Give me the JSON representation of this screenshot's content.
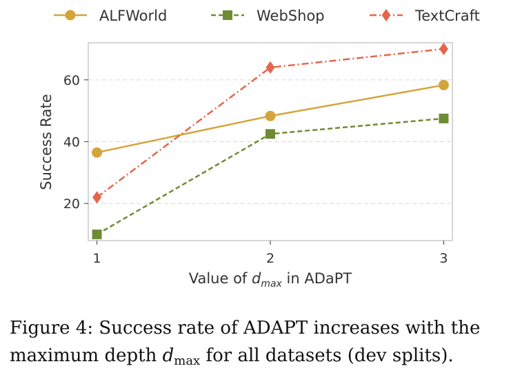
{
  "chart_data": {
    "type": "line",
    "x": [
      1,
      2,
      3
    ],
    "x_tick_labels": [
      "1",
      "2",
      "3"
    ],
    "y_ticks": [
      20,
      40,
      60
    ],
    "ylim": [
      8,
      72
    ],
    "xlim": [
      0.95,
      3.05
    ],
    "ylabel": "Success Rate",
    "xlabel_prefix": "Value of ",
    "xlabel_var": "d",
    "xlabel_sub": "max",
    "xlabel_suffix": " in ADaPT",
    "grid": "horizontal dashed",
    "legend_position": "top",
    "series": [
      {
        "name": "ALFWorld",
        "values": [
          36.5,
          48.3,
          58.3
        ],
        "color": "#d4a43a",
        "marker": "circle",
        "dash": "solid"
      },
      {
        "name": "WebShop",
        "values": [
          10.0,
          42.5,
          47.5
        ],
        "color": "#6e8b35",
        "marker": "square",
        "dash": "dashed"
      },
      {
        "name": "TextCraft",
        "values": [
          22.0,
          64.0,
          70.0
        ],
        "color": "#e5654a",
        "marker": "diamond",
        "dash": "dashdot"
      }
    ]
  },
  "caption": {
    "line1_prefix": "Figure 4:  Success rate of ",
    "line1_ad": "AD",
    "line1_a": "A",
    "line1_pt": "PT",
    "line1_suffix": " increases with the",
    "line2_prefix": "maximum depth ",
    "line2_var": "d",
    "line2_sub": "max",
    "line2_suffix": " for all datasets (dev splits)."
  }
}
